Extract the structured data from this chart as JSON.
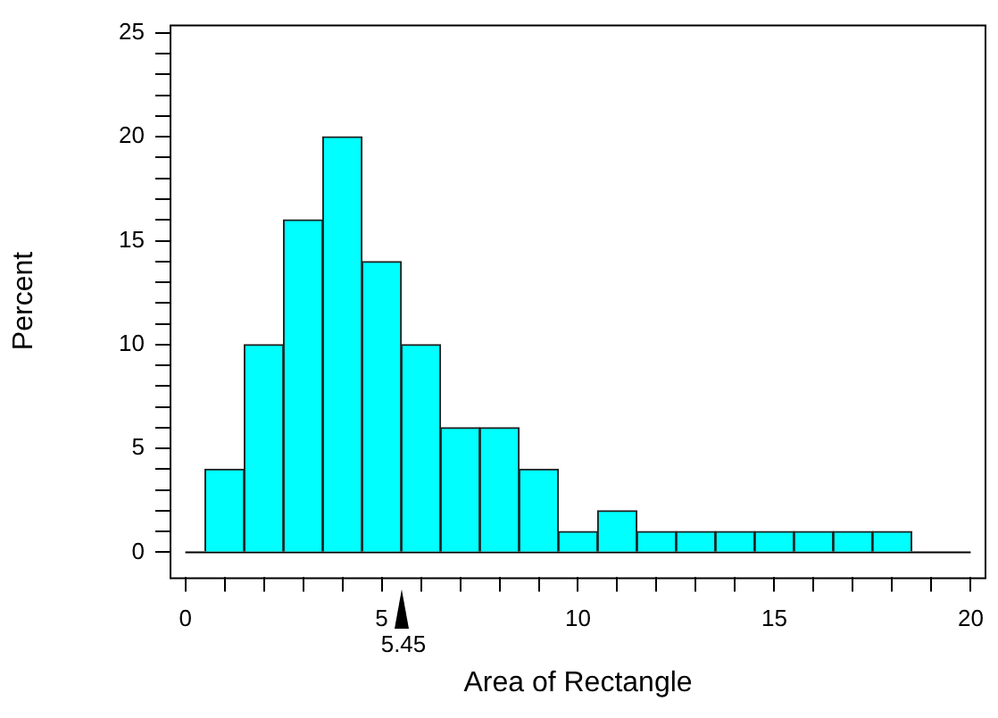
{
  "chart_data": {
    "type": "histogram",
    "xlabel": "Area of Rectangle",
    "ylabel": "Percent",
    "bins": [
      0.5,
      1.5,
      2.5,
      3.5,
      4.5,
      5.5,
      6.5,
      7.5,
      8.5,
      9.5,
      10.5,
      11.5,
      12.5,
      13.5,
      14.5,
      15.5,
      16.5,
      17.5,
      18.5
    ],
    "values": [
      4,
      10,
      16,
      20,
      14,
      10,
      6,
      6,
      4,
      1,
      2,
      1,
      1,
      1,
      1,
      1,
      1,
      1
    ],
    "color": "#00ffff",
    "xlim": [
      -0.4,
      20.4
    ],
    "xticks": [
      0,
      {
        "value": 1,
        "label": null
      },
      {
        "value": 2,
        "label": null
      },
      {
        "value": 3,
        "label": null
      },
      {
        "value": 4,
        "label": null
      },
      5,
      {
        "value": 6,
        "label": null
      },
      {
        "value": 7,
        "label": null
      },
      {
        "value": 8,
        "label": null
      },
      {
        "value": 9,
        "label": null
      },
      10,
      {
        "value": 11,
        "label": null
      },
      {
        "value": 12,
        "label": null
      },
      {
        "value": 13,
        "label": null
      },
      {
        "value": 14,
        "label": null
      },
      15,
      {
        "value": 16,
        "label": null
      },
      {
        "value": 17,
        "label": null
      },
      {
        "value": 18,
        "label": null
      },
      {
        "value": 19,
        "label": null
      },
      20
    ],
    "ylim": [
      -1.2,
      25.4
    ],
    "yticks": [
      0,
      {
        "value": 1,
        "label": null
      },
      {
        "value": 2,
        "label": null
      },
      {
        "value": 3,
        "label": null
      },
      {
        "value": 4,
        "label": null
      },
      5,
      {
        "value": 6,
        "label": null
      },
      {
        "value": 7,
        "label": null
      },
      {
        "value": 8,
        "label": null
      },
      {
        "value": 9,
        "label": null
      },
      10,
      {
        "value": 11,
        "label": null
      },
      {
        "value": 12,
        "label": null
      },
      {
        "value": 13,
        "label": null
      },
      {
        "value": 14,
        "label": null
      },
      15,
      {
        "value": 16,
        "label": null
      },
      {
        "value": 17,
        "label": null
      },
      {
        "value": 18,
        "label": null
      },
      {
        "value": 19,
        "label": null
      },
      20,
      {
        "value": 21,
        "label": null
      },
      {
        "value": 22,
        "label": null
      },
      {
        "value": 23,
        "label": null
      },
      {
        "value": 24,
        "label": null
      },
      25
    ],
    "ref_lines": [
      {
        "axis": "y",
        "value": 0,
        "color": "#000000"
      }
    ],
    "annotations": [
      "5.45"
    ],
    "grid": false,
    "legend": false
  }
}
